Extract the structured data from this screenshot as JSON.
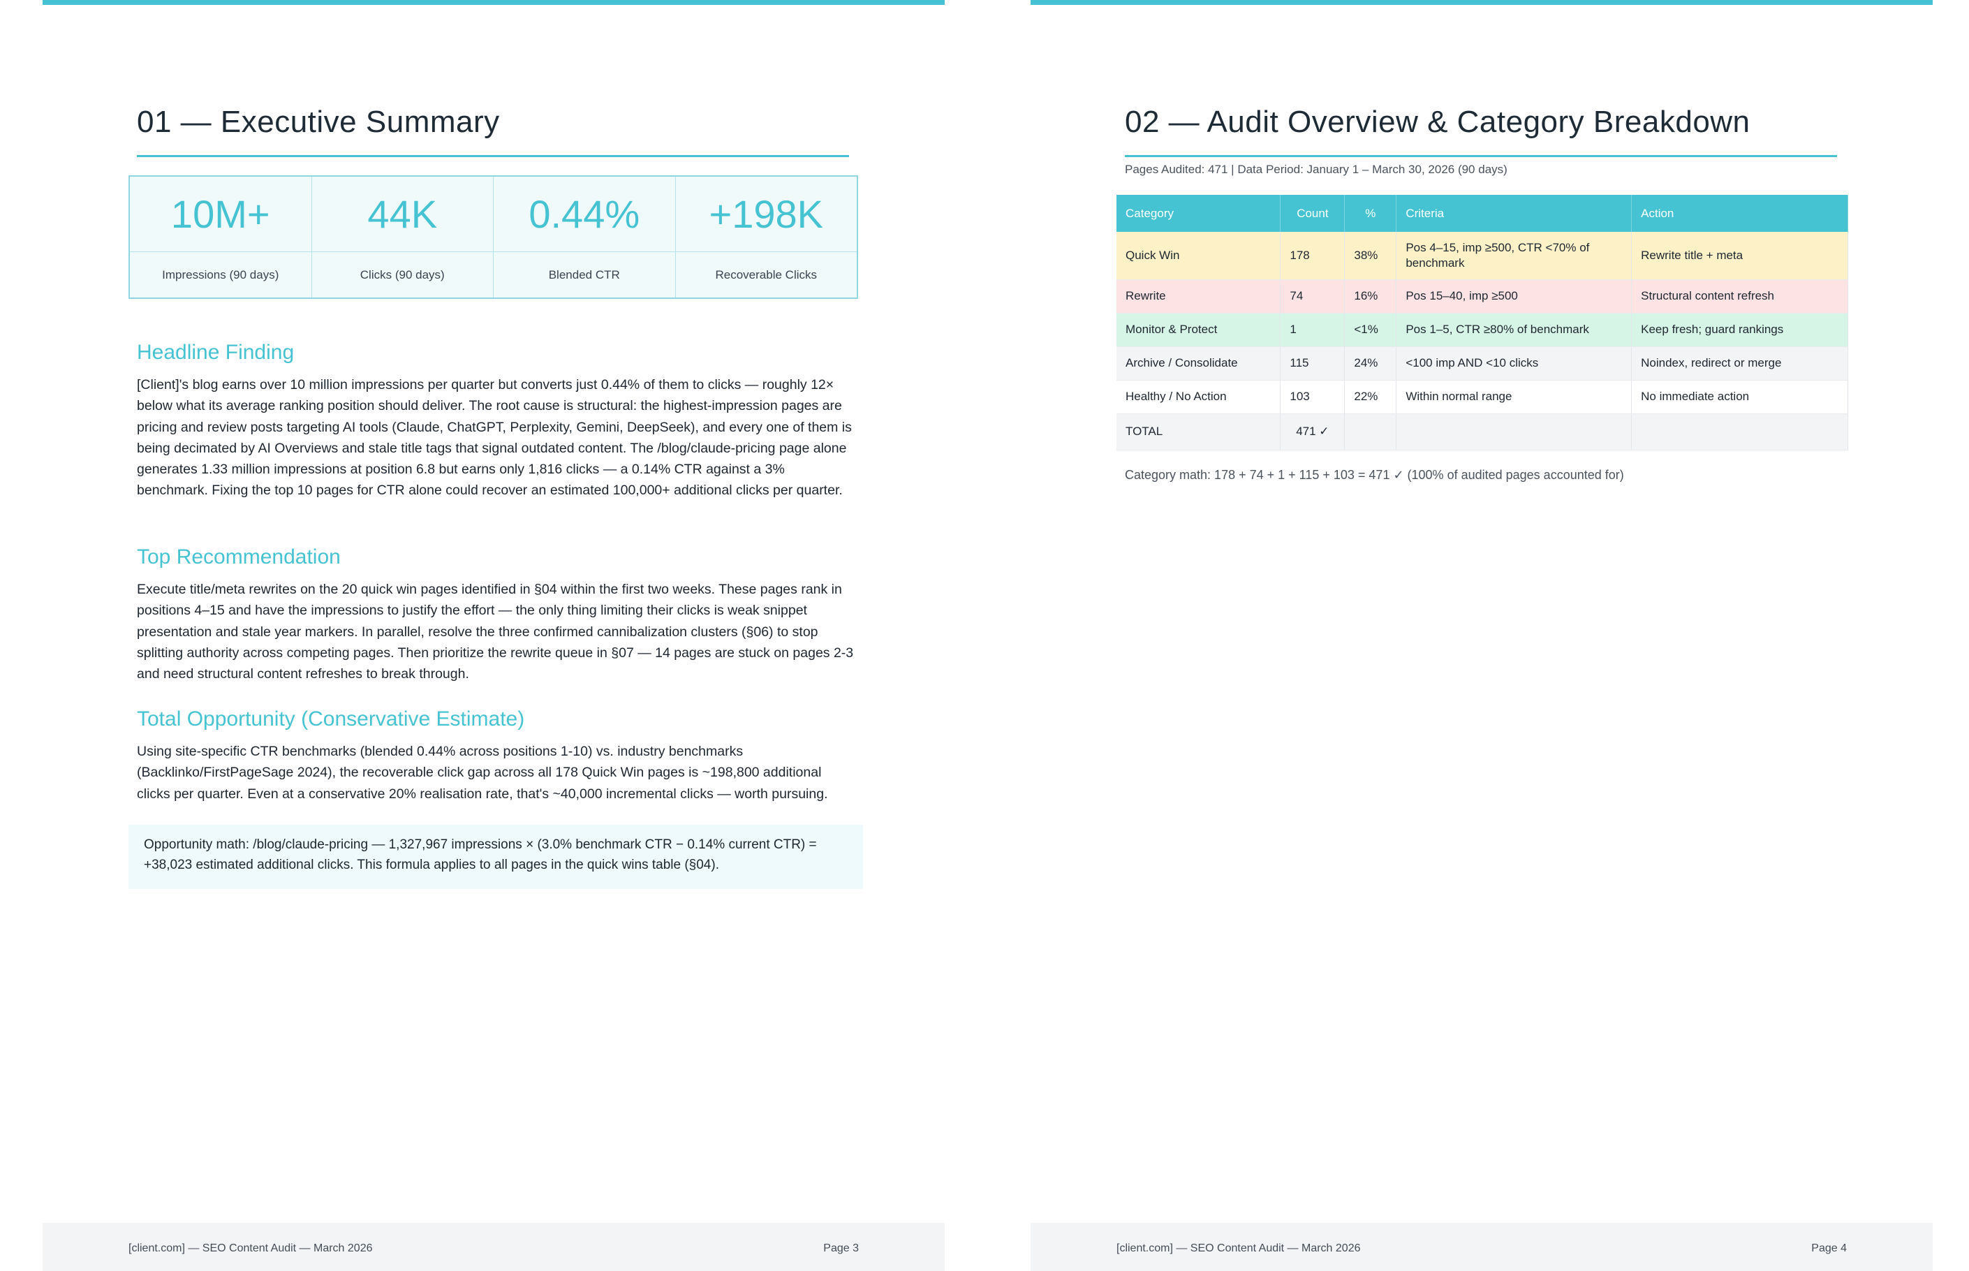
{
  "left_page": {
    "title": "01 — Executive Summary",
    "kpis": [
      {
        "value": "10M+",
        "label": "Impressions (90 days)"
      },
      {
        "value": "44K",
        "label": "Clicks (90 days)"
      },
      {
        "value": "0.44%",
        "label": "Blended CTR"
      },
      {
        "value": "+198K",
        "label": "Recoverable Clicks"
      }
    ],
    "headline_finding": {
      "heading": "Headline Finding",
      "text": "[Client]'s blog earns over 10 million impressions per quarter but converts just 0.44% of them to clicks — roughly 12× below what its average ranking position should deliver. The root cause is structural: the highest-impression pages are pricing and review posts targeting AI tools (Claude, ChatGPT, Perplexity, Gemini, DeepSeek), and every one of them is being decimated by AI Overviews and stale title tags that signal outdated content. The /blog/claude-pricing page alone generates 1.33 million impressions at position 6.8 but earns only 1,816 clicks — a 0.14% CTR against a 3% benchmark. Fixing the top 10 pages for CTR alone could recover an estimated 100,000+ additional clicks per quarter."
    },
    "top_recommendation": {
      "heading": "Top Recommendation",
      "text": "Execute title/meta rewrites on the 20 quick win pages identified in §04 within the first two weeks. These pages rank in positions 4–15 and have the impressions to justify the effort — the only thing limiting their clicks is weak snippet presentation and stale year markers. In parallel, resolve the three confirmed cannibalization clusters (§06) to stop splitting authority across competing pages. Then prioritize the rewrite queue in §07 — 14 pages are stuck on pages 2-3 and need structural content refreshes to break through."
    },
    "total_opportunity": {
      "heading": "Total Opportunity (Conservative Estimate)",
      "text": "Using site-specific CTR benchmarks (blended 0.44% across positions 1-10) vs. industry benchmarks (Backlinko/FirstPageSage 2024), the recoverable click gap across all 178 Quick Win pages is ~198,800 additional clicks per quarter. Even at a conservative 20% realisation rate, that's ~40,000 incremental clicks — worth pursuing."
    },
    "callout": "Opportunity math: /blog/claude-pricing — 1,327,967 impressions × (3.0% benchmark CTR − 0.14% current CTR) = +38,023 estimated additional clicks. This formula applies to all pages in the quick wins table (§04).",
    "footer": {
      "left": "[client.com] — SEO Content Audit — March 2026",
      "right": "Page 3"
    }
  },
  "right_page": {
    "title": "02 — Audit Overview & Category Breakdown",
    "meta": "Pages Audited: 471 | Data Period: January 1 – March 30, 2026 (90 days)",
    "table": {
      "headers": [
        "Category",
        "Count",
        "%",
        "Criteria",
        "Action"
      ],
      "rows": [
        [
          "Quick Win",
          "178",
          "38%",
          "Pos 4–15, imp ≥500, CTR <70% of benchmark",
          "Rewrite title + meta"
        ],
        [
          "Rewrite",
          "74",
          "16%",
          "Pos 15–40, imp ≥500",
          "Structural content refresh"
        ],
        [
          "Monitor & Protect",
          "1",
          "<1%",
          "Pos 1–5, CTR ≥80% of benchmark",
          "Keep fresh; guard rankings"
        ],
        [
          "Archive / Consolidate",
          "115",
          "24%",
          "<100 imp AND <10 clicks",
          "Noindex, redirect or merge"
        ],
        [
          "Healthy / No Action",
          "103",
          "22%",
          "Within normal range",
          "No immediate action"
        ],
        [
          "TOTAL",
          "471 ✓",
          "",
          "",
          ""
        ]
      ]
    },
    "category_math": "Category math: 178 + 74 + 1 + 115 + 103 = 471 ✓ (100% of audited pages accounted for)",
    "footer": {
      "left": "[client.com] — SEO Content Audit — March 2026",
      "right": "Page 4"
    }
  }
}
